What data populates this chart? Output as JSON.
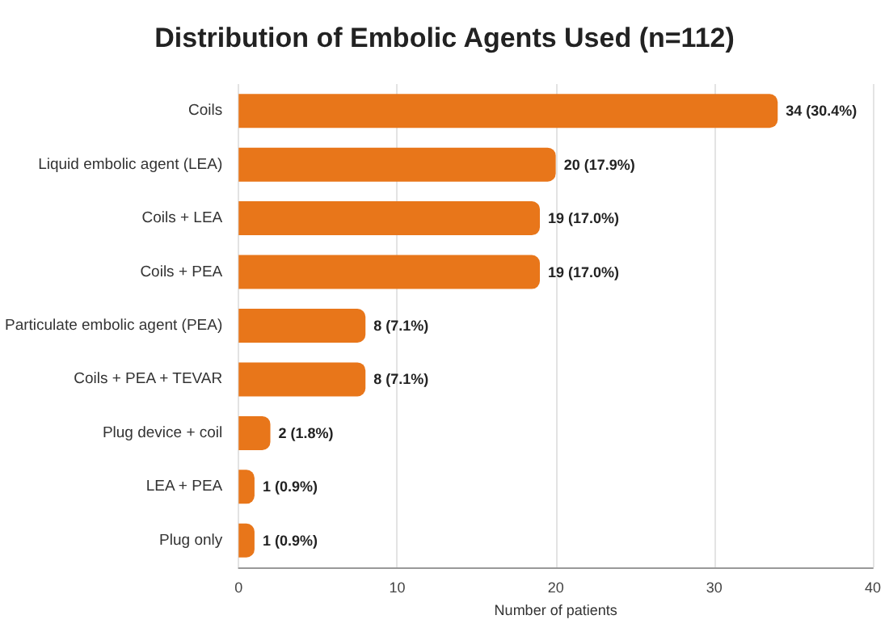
{
  "chart_data": {
    "type": "bar",
    "orientation": "horizontal",
    "title": "Distribution of Embolic Agents Used (n=112)",
    "xlabel": "Number of patients",
    "categories": [
      "Coils",
      "Liquid embolic agent (LEA)",
      "Coils + LEA",
      "Coils + PEA",
      "Particulate embolic agent (PEA)",
      "Coils + PEA + TEVAR",
      "Plug device + coil",
      "LEA + PEA",
      "Plug only"
    ],
    "values": [
      34,
      20,
      19,
      19,
      8,
      8,
      2,
      1,
      1
    ],
    "value_labels": [
      "34 (30.4%)",
      "20 (17.9%)",
      "19 (17.0%)",
      "19 (17.0%)",
      "8 (7.1%)",
      "8 (7.1%)",
      "2 (1.8%)",
      "1 (0.9%)",
      "1 (0.9%)"
    ],
    "color": "#e8761a",
    "xlim": [
      0,
      40
    ],
    "xticks": [
      0,
      10,
      20,
      30,
      40
    ],
    "grid": "x"
  }
}
